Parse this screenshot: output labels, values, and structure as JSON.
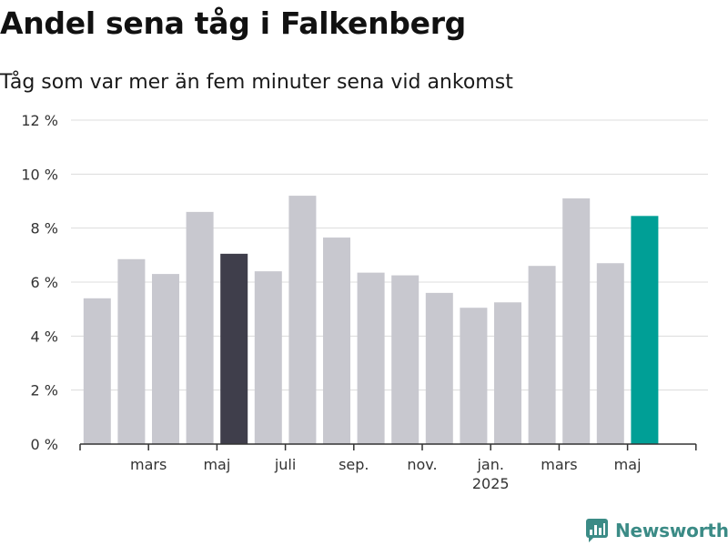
{
  "header": {
    "title": "Andel sena tåg i Falkenberg",
    "subtitle": "Tåg som var mer än fem minuter sena vid ankomst"
  },
  "brand": {
    "name": "Newsworthy",
    "icon": "bar-chart-pin-icon",
    "color": "#3b8b86"
  },
  "colors": {
    "bar": "#c8c8cf",
    "highlight_dark": "#3f3e4b",
    "highlight_accent": "#009f96",
    "grid": "#dcdcdc",
    "axis": "#333333"
  },
  "chart_data": {
    "type": "bar",
    "title": "Andel sena tåg i Falkenberg",
    "subtitle": "Tåg som var mer än fem minuter sena vid ankomst",
    "categories": [
      "2024-01",
      "2024-02",
      "2024-03",
      "2024-04",
      "2024-05",
      "2024-06",
      "2024-07",
      "2024-08",
      "2024-09",
      "2024-10",
      "2024-11",
      "2024-12",
      "2025-01",
      "2025-02",
      "2025-03",
      "2025-04",
      "2025-05",
      "2025-06"
    ],
    "values": [
      5.4,
      6.85,
      6.3,
      8.6,
      7.05,
      6.4,
      9.2,
      7.65,
      6.35,
      6.25,
      5.6,
      5.05,
      5.25,
      6.6,
      9.1,
      6.7,
      8.45,
      null
    ],
    "bar_colors": [
      "#c8c8cf",
      "#c8c8cf",
      "#c8c8cf",
      "#c8c8cf",
      "#3f3e4b",
      "#c8c8cf",
      "#c8c8cf",
      "#c8c8cf",
      "#c8c8cf",
      "#c8c8cf",
      "#c8c8cf",
      "#c8c8cf",
      "#c8c8cf",
      "#c8c8cf",
      "#c8c8cf",
      "#c8c8cf",
      "#009f96",
      null
    ],
    "ylim": [
      0,
      12
    ],
    "yticks": [
      0,
      2,
      4,
      6,
      8,
      10,
      12
    ],
    "ytick_labels": [
      "0 %",
      "2 %",
      "4 %",
      "6 %",
      "8 %",
      "10 %",
      "12 %"
    ],
    "xticks": [
      {
        "at": "2024-02",
        "label": "mars",
        "sublabel": ""
      },
      {
        "at": "2024-04",
        "label": "maj",
        "sublabel": ""
      },
      {
        "at": "2024-06",
        "label": "juli",
        "sublabel": ""
      },
      {
        "at": "2024-08",
        "label": "sep.",
        "sublabel": ""
      },
      {
        "at": "2024-10",
        "label": "nov.",
        "sublabel": ""
      },
      {
        "at": "2024-12",
        "label": "jan.",
        "sublabel": "2025"
      },
      {
        "at": "2025-02",
        "label": "mars",
        "sublabel": ""
      },
      {
        "at": "2025-04",
        "label": "maj",
        "sublabel": ""
      }
    ],
    "grid": true
  }
}
